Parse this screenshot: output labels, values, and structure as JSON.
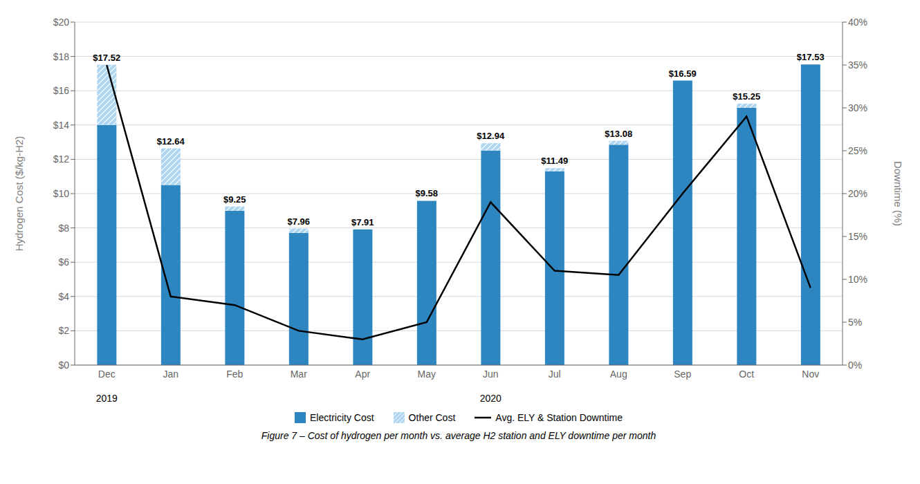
{
  "chart_data": {
    "type": "bar",
    "stacked": true,
    "grid": true,
    "legend": "bottom",
    "data_labels": true,
    "ylabel": "Hydrogen Cost ($/kg-H2)",
    "y2label": "Downtime (%)",
    "caption": "Figure 7 – Cost of hydrogen per month vs. average H2 station and ELY downtime per month",
    "annotations": [
      "2019",
      "2020"
    ],
    "categories": [
      "Dec",
      "Jan",
      "Feb",
      "Mar",
      "Apr",
      "May",
      "Jun",
      "Jul",
      "Aug",
      "Sep",
      "Oct",
      "Nov"
    ],
    "series": [
      {
        "name": "Electricity Cost",
        "type": "bar",
        "color": "#2E86C1",
        "values": [
          14.0,
          10.5,
          9.0,
          7.7,
          7.91,
          9.58,
          12.5,
          11.3,
          12.85,
          16.59,
          15.0,
          17.53
        ]
      },
      {
        "name": "Other Cost",
        "type": "bar",
        "color": "#AED6F1",
        "values": [
          3.52,
          2.14,
          0.25,
          0.26,
          0.0,
          0.0,
          0.44,
          0.19,
          0.23,
          0.0,
          0.25,
          0.0
        ]
      },
      {
        "name": "Avg. ELY & Station Downtime",
        "type": "line",
        "axis": "y2",
        "color": "#000000",
        "marker": "none",
        "values": [
          35.0,
          8.0,
          7.0,
          4.0,
          3.0,
          5.0,
          19.0,
          11.0,
          10.5,
          20.0,
          29.0,
          9.0
        ]
      }
    ],
    "totals": {
      "values": [
        17.52,
        12.64,
        9.25,
        7.96,
        7.91,
        9.58,
        12.94,
        11.49,
        13.08,
        16.59,
        15.25,
        17.53
      ],
      "value_labels": [
        "$17.52",
        "$12.64",
        "$9.25",
        "$7.96",
        "$7.91",
        "$9.58",
        "$12.94",
        "$11.49",
        "$13.08",
        "$16.59",
        "$15.25",
        "$17.53"
      ]
    },
    "ylim": [
      0,
      20
    ],
    "yticks": [
      {
        "value": 0,
        "label": "$0"
      },
      {
        "value": 2,
        "label": "$2"
      },
      {
        "value": 4,
        "label": "$4"
      },
      {
        "value": 6,
        "label": "$6"
      },
      {
        "value": 8,
        "label": "$8"
      },
      {
        "value": 10,
        "label": "$10"
      },
      {
        "value": 12,
        "label": "$12"
      },
      {
        "value": 14,
        "label": "$14"
      },
      {
        "value": 16,
        "label": "$16"
      },
      {
        "value": 18,
        "label": "$18"
      },
      {
        "value": 20,
        "label": "$20"
      }
    ],
    "y2lim": [
      0,
      40
    ],
    "y2ticks": [
      {
        "value": 0,
        "label": "0%"
      },
      {
        "value": 5,
        "label": "5%"
      },
      {
        "value": 10,
        "label": "10%"
      },
      {
        "value": 15,
        "label": "15%"
      },
      {
        "value": 20,
        "label": "20%"
      },
      {
        "value": 25,
        "label": "25%"
      },
      {
        "value": 30,
        "label": "30%"
      },
      {
        "value": 35,
        "label": "35%"
      },
      {
        "value": 40,
        "label": "40%"
      }
    ]
  }
}
